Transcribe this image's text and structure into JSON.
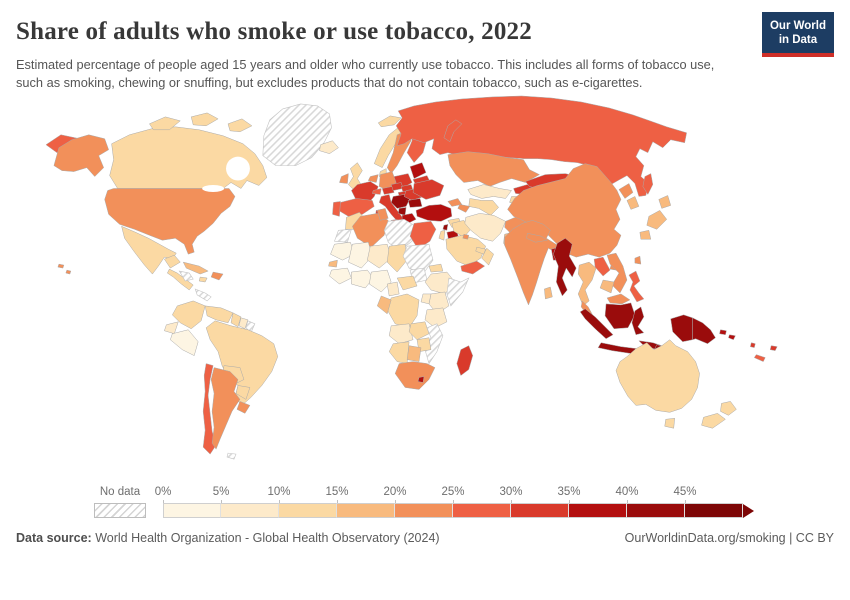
{
  "header": {
    "title": "Share of adults who smoke or use tobacco, 2022",
    "subtitle": "Estimated percentage of people aged 15 years and older who currently use tobacco. This includes all forms of tobacco use, such as smoking, chewing or snuffing, but excludes products that do not contain tobacco, such as e-cigarettes.",
    "logo": {
      "line1": "Our World",
      "line2": "in Data",
      "bg_color": "#1d3d63",
      "accent_color": "#cf2f28"
    }
  },
  "legend": {
    "no_data_label": "No data"
  },
  "footer": {
    "source_label": "Data source:",
    "source_text": " World Health Organization - Global Health Observatory (2024)",
    "attribution": "OurWorldinData.org/smoking | CC BY"
  },
  "chart_data": {
    "type": "choropleth_map",
    "title": "Share of adults who smoke or use tobacco, 2022",
    "unit": "%",
    "projection": "world",
    "bins": [
      {
        "min_label": "0%",
        "range": "0–5%",
        "color": "#fdf5e3"
      },
      {
        "min_label": "5%",
        "range": "5–10%",
        "color": "#fdeaca"
      },
      {
        "min_label": "10%",
        "range": "10–15%",
        "color": "#fbd9a3"
      },
      {
        "min_label": "15%",
        "range": "15–20%",
        "color": "#f8ba7e"
      },
      {
        "min_label": "20%",
        "range": "20–25%",
        "color": "#f2905a"
      },
      {
        "min_label": "25%",
        "range": "25–30%",
        "color": "#ee6044"
      },
      {
        "min_label": "30%",
        "range": "30–35%",
        "color": "#d93a2b"
      },
      {
        "min_label": "35%",
        "range": "35–40%",
        "color": "#b30f0f"
      },
      {
        "min_label": "40%",
        "range": "40–45%",
        "color": "#9a0c0c"
      },
      {
        "min_label": "45%",
        "range": "45%+",
        "color": "#7d0606"
      }
    ],
    "no_data_pattern": "diagonal-hatch",
    "countries": {
      "usa": {
        "name": "United States",
        "bin": 4
      },
      "canada": {
        "name": "Canada",
        "bin": 2
      },
      "greenland": {
        "name": "Greenland",
        "bin": null
      },
      "iceland": {
        "name": "Iceland",
        "bin": 1
      },
      "mexico": {
        "name": "Mexico",
        "bin": 2
      },
      "central_america": {
        "name": "Central America (Guatemala, Costa Rica)",
        "bin": 2
      },
      "honduras": {
        "name": "Honduras",
        "bin": null
      },
      "panama": {
        "name": "Panama",
        "bin": null
      },
      "cuba": {
        "name": "Cuba",
        "bin": 3
      },
      "hispaniola": {
        "name": "Haiti / Dominican Republic",
        "bin": 4
      },
      "jamaica": {
        "name": "Jamaica",
        "bin": 2
      },
      "colombia": {
        "name": "Colombia",
        "bin": 2
      },
      "venezuela": {
        "name": "Venezuela",
        "bin": 2
      },
      "guyana": {
        "name": "Guyana",
        "bin": 2
      },
      "suriname": {
        "name": "Suriname",
        "bin": 1
      },
      "french_guiana": {
        "name": "French Guiana",
        "bin": null
      },
      "ecuador": {
        "name": "Ecuador",
        "bin": 1
      },
      "peru": {
        "name": "Peru",
        "bin": 0
      },
      "brazil": {
        "name": "Brazil",
        "bin": 2
      },
      "bolivia": {
        "name": "Bolivia",
        "bin": 2
      },
      "paraguay": {
        "name": "Paraguay",
        "bin": 2
      },
      "chile": {
        "name": "Chile",
        "bin": 5
      },
      "argentina": {
        "name": "Argentina",
        "bin": 4
      },
      "uruguay": {
        "name": "Uruguay",
        "bin": 4
      },
      "falkland_islands": {
        "name": "Falkland Islands",
        "bin": null
      },
      "uk": {
        "name": "United Kingdom",
        "bin": 2
      },
      "ireland": {
        "name": "Ireland",
        "bin": 4
      },
      "norway": {
        "name": "Norway",
        "bin": 2
      },
      "sweden": {
        "name": "Sweden",
        "bin": 4
      },
      "finland": {
        "name": "Finland",
        "bin": 5
      },
      "denmark": {
        "name": "Denmark",
        "bin": 2
      },
      "baltics": {
        "name": "Baltic states",
        "bin": 7
      },
      "belarus": {
        "name": "Belarus",
        "bin": 6
      },
      "poland": {
        "name": "Poland",
        "bin": 6
      },
      "germany": {
        "name": "Germany",
        "bin": 4
      },
      "netherlands": {
        "name": "Netherlands / Belgium",
        "bin": 4
      },
      "france": {
        "name": "France",
        "bin": 6
      },
      "switzerland": {
        "name": "Switzerland",
        "bin": 5
      },
      "austria": {
        "name": "Austria",
        "bin": 6
      },
      "czechia": {
        "name": "Czechia",
        "bin": 6
      },
      "slovakia": {
        "name": "Slovakia",
        "bin": 6
      },
      "hungary": {
        "name": "Hungary",
        "bin": 6
      },
      "spain": {
        "name": "Spain",
        "bin": 5
      },
      "portugal": {
        "name": "Portugal",
        "bin": 5
      },
      "italy": {
        "name": "Italy",
        "bin": 6
      },
      "serbia_balkans": {
        "name": "Serbia / Bosnia / Croatia",
        "bin": 8
      },
      "albania_mk": {
        "name": "Albania / North Macedonia",
        "bin": 8
      },
      "greece": {
        "name": "Greece",
        "bin": 7
      },
      "romania": {
        "name": "Romania",
        "bin": 6
      },
      "bulgaria": {
        "name": "Bulgaria",
        "bin": 8
      },
      "ukraine": {
        "name": "Ukraine",
        "bin": 6
      },
      "russia": {
        "name": "Russia",
        "bin": 5
      },
      "turkey": {
        "name": "Turkey",
        "bin": 7
      },
      "georgia": {
        "name": "Georgia",
        "bin": 4
      },
      "azerbaijan": {
        "name": "Azerbaijan",
        "bin": 4
      },
      "kazakhstan": {
        "name": "Kazakhstan",
        "bin": 4
      },
      "uzbekistan": {
        "name": "Uzbekistan",
        "bin": 1
      },
      "turkmenistan": {
        "name": "Turkmenistan",
        "bin": 2
      },
      "kyrgyzstan": {
        "name": "Kyrgyzstan",
        "bin": 6
      },
      "tajikistan": {
        "name": "Tajikistan",
        "bin": 2
      },
      "iran": {
        "name": "Iran",
        "bin": 1
      },
      "iraq": {
        "name": "Iraq",
        "bin": 2
      },
      "syria": {
        "name": "Syria",
        "bin": 2
      },
      "lebanon": {
        "name": "Lebanon",
        "bin": 8
      },
      "israel": {
        "name": "Israel",
        "bin": 2
      },
      "jordan": {
        "name": "Jordan",
        "bin": 7
      },
      "saudi_arabia": {
        "name": "Saudi Arabia",
        "bin": 2
      },
      "yemen": {
        "name": "Yemen",
        "bin": 5
      },
      "oman": {
        "name": "Oman",
        "bin": 2
      },
      "uae": {
        "name": "United Arab Emirates",
        "bin": 2
      },
      "kuwait": {
        "name": "Kuwait",
        "bin": 4
      },
      "afghanistan": {
        "name": "Afghanistan",
        "bin": 4
      },
      "pakistan": {
        "name": "Pakistan",
        "bin": 3
      },
      "india": {
        "name": "India",
        "bin": 4
      },
      "nepal": {
        "name": "Nepal",
        "bin": 4
      },
      "bangladesh": {
        "name": "Bangladesh",
        "bin": 7
      },
      "sri_lanka": {
        "name": "Sri Lanka",
        "bin": 3
      },
      "myanmar": {
        "name": "Myanmar",
        "bin": 8
      },
      "thailand": {
        "name": "Thailand",
        "bin": 3
      },
      "laos": {
        "name": "Laos",
        "bin": 5
      },
      "vietnam": {
        "name": "Vietnam",
        "bin": 4
      },
      "cambodia": {
        "name": "Cambodia",
        "bin": 3
      },
      "malaysia": {
        "name": "Malaysia",
        "bin": 4
      },
      "indonesia": {
        "name": "Indonesia",
        "bin": 8
      },
      "philippines": {
        "name": "Philippines",
        "bin": 5
      },
      "taiwan": {
        "name": "Taiwan",
        "bin": 4
      },
      "china": {
        "name": "China",
        "bin": 4
      },
      "mongolia": {
        "name": "Mongolia",
        "bin": 6
      },
      "north_korea": {
        "name": "North Korea",
        "bin": 4
      },
      "south_korea": {
        "name": "South Korea",
        "bin": 3
      },
      "japan": {
        "name": "Japan",
        "bin": 3
      },
      "timor": {
        "name": "Timor-Leste",
        "bin": 8
      },
      "papua_new_guinea": {
        "name": "Papua New Guinea",
        "bin": 8
      },
      "solomon_islands": {
        "name": "Solomon Islands",
        "bin": 7
      },
      "vanuatu": {
        "name": "Vanuatu",
        "bin": 6
      },
      "fiji": {
        "name": "Fiji",
        "bin": 6
      },
      "new_caledonia": {
        "name": "New Caledonia",
        "bin": 5
      },
      "australia": {
        "name": "Australia",
        "bin": 2
      },
      "new_zealand": {
        "name": "New Zealand",
        "bin": 2
      },
      "morocco": {
        "name": "Morocco",
        "bin": 2
      },
      "western_sahara": {
        "name": "Western Sahara",
        "bin": null
      },
      "algeria": {
        "name": "Algeria",
        "bin": 4
      },
      "tunisia": {
        "name": "Tunisia",
        "bin": 4
      },
      "libya": {
        "name": "Libya",
        "bin": null
      },
      "egypt": {
        "name": "Egypt",
        "bin": 5
      },
      "mauritania": {
        "name": "Mauritania",
        "bin": 0
      },
      "mali": {
        "name": "Mali",
        "bin": 0
      },
      "niger": {
        "name": "Niger",
        "bin": 1
      },
      "chad": {
        "name": "Chad",
        "bin": 2
      },
      "sudan": {
        "name": "Sudan",
        "bin": null
      },
      "south_sudan": {
        "name": "South Sudan",
        "bin": null
      },
      "eritrea": {
        "name": "Eritrea",
        "bin": 2
      },
      "senegal": {
        "name": "Senegal",
        "bin": 3
      },
      "guinea_group": {
        "name": "Guinea / Sierra Leone / Liberia",
        "bin": 0
      },
      "west_coast_group": {
        "name": "Côte d'Ivoire / Ghana / Togo / Benin",
        "bin": 0
      },
      "nigeria": {
        "name": "Nigeria",
        "bin": 0
      },
      "cameroon": {
        "name": "Cameroon",
        "bin": 1
      },
      "car": {
        "name": "Central African Republic",
        "bin": 2
      },
      "ethiopia": {
        "name": "Ethiopia",
        "bin": 1
      },
      "somalia": {
        "name": "Somalia",
        "bin": null
      },
      "kenya": {
        "name": "Kenya",
        "bin": 1
      },
      "uganda": {
        "name": "Uganda",
        "bin": 1
      },
      "drc": {
        "name": "Democratic Republic of Congo",
        "bin": 2
      },
      "congo_gabon": {
        "name": "Congo / Gabon",
        "bin": 3
      },
      "tanzania": {
        "name": "Tanzania",
        "bin": 1
      },
      "angola": {
        "name": "Angola",
        "bin": 1
      },
      "zambia": {
        "name": "Zambia",
        "bin": 2
      },
      "mozambique": {
        "name": "Mozambique",
        "bin": null
      },
      "zimbabwe": {
        "name": "Zimbabwe",
        "bin": 2
      },
      "namibia": {
        "name": "Namibia",
        "bin": 2
      },
      "botswana": {
        "name": "Botswana",
        "bin": 3
      },
      "south_africa": {
        "name": "South Africa",
        "bin": 4
      },
      "lesotho": {
        "name": "Lesotho",
        "bin": 7
      },
      "madagascar": {
        "name": "Madagascar",
        "bin": 6
      }
    }
  }
}
